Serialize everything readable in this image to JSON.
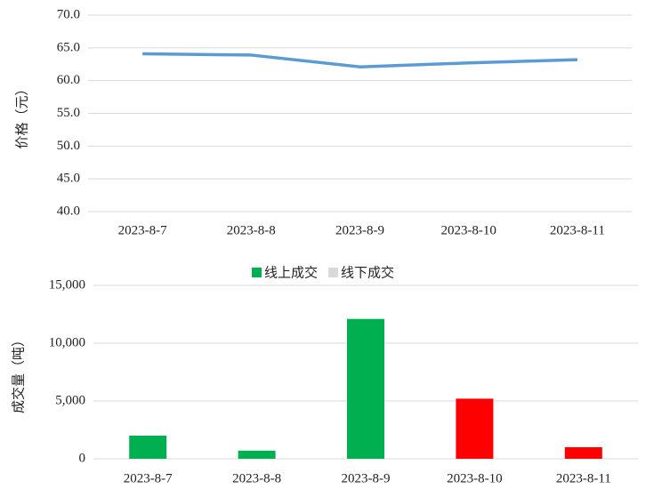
{
  "chart_data": [
    {
      "type": "line",
      "y_label": "价格（元）",
      "categories": [
        "2023-8-7",
        "2023-8-8",
        "2023-8-9",
        "2023-8-10",
        "2023-8-11"
      ],
      "series": [
        {
          "color": "#5b9bd5",
          "values": [
            64.1,
            63.9,
            62.1,
            62.7,
            63.2
          ]
        }
      ],
      "ylim": [
        40,
        70
      ],
      "yticks": [
        {
          "value": 40,
          "label": "40.0"
        },
        {
          "value": 45,
          "label": "45.0"
        },
        {
          "value": 50,
          "label": "50.0"
        },
        {
          "value": 55,
          "label": "55.0"
        },
        {
          "value": 60,
          "label": "60.0"
        },
        {
          "value": 65,
          "label": "65.0"
        },
        {
          "value": 70,
          "label": "70.0"
        }
      ],
      "grid": true
    },
    {
      "type": "bar",
      "y_label": "成交量（吨）",
      "categories": [
        "2023-8-7",
        "2023-8-8",
        "2023-8-9",
        "2023-8-10",
        "2023-8-11"
      ],
      "series": [
        {
          "name": "线上成交",
          "color": "#00b050",
          "colors": [
            "#00b050",
            "#00b050",
            "#00b050",
            "#ff0000",
            "#ff0000"
          ],
          "values": [
            2000,
            700,
            12100,
            5200,
            1000
          ]
        },
        {
          "name": "线下成交",
          "color": "#d9d9d9",
          "values": [
            0,
            0,
            0,
            0,
            0
          ]
        }
      ],
      "ylim": [
        0,
        15000
      ],
      "yticks": [
        0,
        {
          "value": 5000,
          "label": "5,000"
        },
        {
          "value": 10000,
          "label": "10,000"
        },
        {
          "value": 15000,
          "label": "15,000"
        }
      ],
      "grid": true,
      "legend": "top"
    }
  ]
}
